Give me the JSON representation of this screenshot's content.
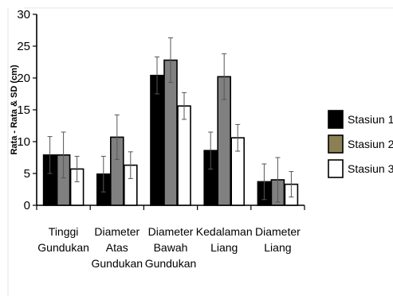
{
  "chart_data": {
    "type": "bar",
    "title": "",
    "xlabel": "",
    "ylabel": "Rata - Rata & SD (cm)",
    "ylim": [
      0,
      30
    ],
    "yticks": [
      0,
      5,
      10,
      15,
      20,
      25,
      30
    ],
    "categories": [
      [
        "Tinggi",
        "Gundukan"
      ],
      [
        "Diameter",
        "Atas",
        "Gundukan"
      ],
      [
        "Diameter",
        "Bawah",
        "Gundukan"
      ],
      [
        "Kedalaman",
        "Liang"
      ],
      [
        "Diameter",
        "Liang"
      ]
    ],
    "grid": false,
    "legend_position": "right",
    "series": [
      {
        "name": "Stasiun 1",
        "color": "#000000",
        "values": [
          7.9,
          4.9,
          20.4,
          8.6,
          3.7
        ],
        "sd": [
          2.9,
          2.8,
          2.9,
          2.9,
          2.8
        ]
      },
      {
        "name": "Stasiun 2",
        "color": "#808080",
        "values": [
          7.9,
          10.7,
          22.8,
          20.2,
          4.0
        ],
        "sd": [
          3.6,
          3.5,
          3.5,
          3.6,
          3.5
        ]
      },
      {
        "name": "Stasiun 3",
        "color": "#ffffff",
        "values": [
          5.7,
          6.3,
          15.6,
          10.6,
          3.3
        ],
        "sd": [
          2.0,
          2.1,
          2.1,
          2.1,
          2.0
        ]
      }
    ],
    "legend_swatch_colors": [
      "#000000",
      "#8b8054",
      "#ffffff"
    ]
  }
}
